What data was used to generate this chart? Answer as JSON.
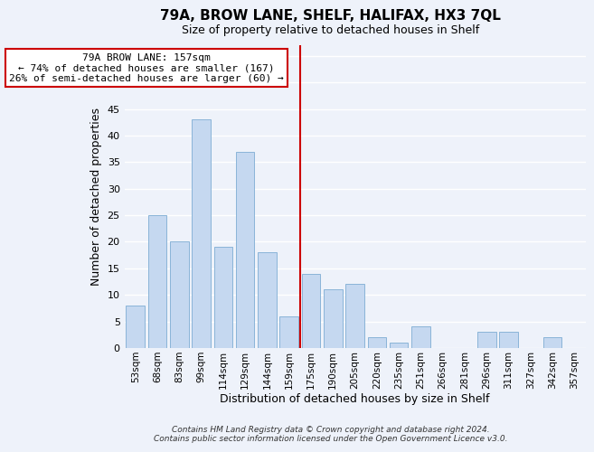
{
  "title": "79A, BROW LANE, SHELF, HALIFAX, HX3 7QL",
  "subtitle": "Size of property relative to detached houses in Shelf",
  "xlabel": "Distribution of detached houses by size in Shelf",
  "ylabel": "Number of detached properties",
  "categories": [
    "53sqm",
    "68sqm",
    "83sqm",
    "99sqm",
    "114sqm",
    "129sqm",
    "144sqm",
    "159sqm",
    "175sqm",
    "190sqm",
    "205sqm",
    "220sqm",
    "235sqm",
    "251sqm",
    "266sqm",
    "281sqm",
    "296sqm",
    "311sqm",
    "327sqm",
    "342sqm",
    "357sqm"
  ],
  "values": [
    8,
    25,
    20,
    43,
    19,
    37,
    18,
    6,
    14,
    11,
    12,
    2,
    1,
    4,
    0,
    0,
    3,
    3,
    0,
    2,
    0
  ],
  "bar_color": "#c5d8f0",
  "bar_edge_color": "#8ab4d8",
  "reference_line_idx": 7,
  "reference_line_color": "#cc0000",
  "annotation_title": "79A BROW LANE: 157sqm",
  "annotation_line1": "← 74% of detached houses are smaller (167)",
  "annotation_line2": "26% of semi-detached houses are larger (60) →",
  "annotation_box_color": "#ffffff",
  "annotation_box_edge_color": "#cc0000",
  "ylim": [
    0,
    57
  ],
  "yticks": [
    0,
    5,
    10,
    15,
    20,
    25,
    30,
    35,
    40,
    45,
    50,
    55
  ],
  "footer_line1": "Contains HM Land Registry data © Crown copyright and database right 2024.",
  "footer_line2": "Contains public sector information licensed under the Open Government Licence v3.0.",
  "background_color": "#eef2fa",
  "grid_color": "#ffffff"
}
